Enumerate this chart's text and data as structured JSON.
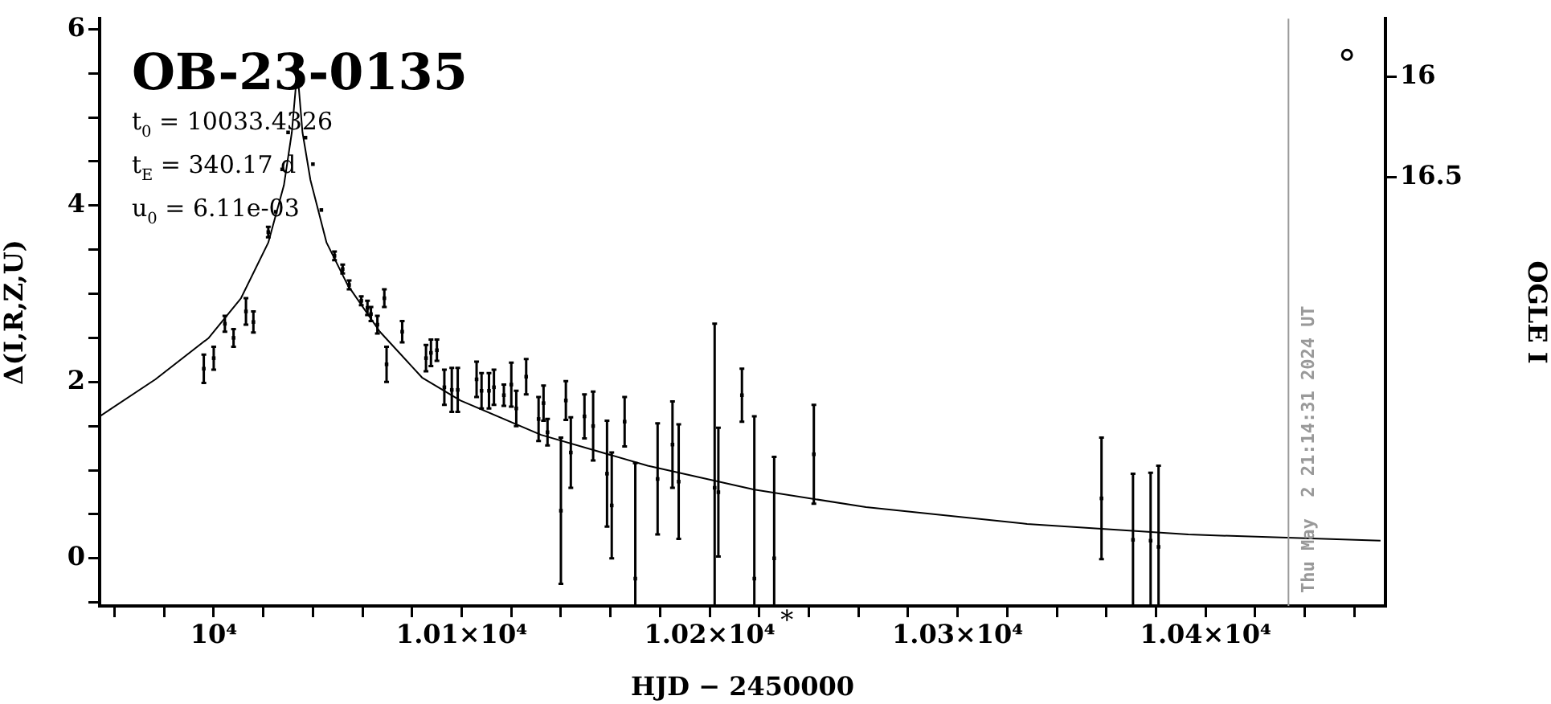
{
  "chart_data": {
    "type": "scatter",
    "title": "OB-23-0135",
    "xlabel": "HJD − 2450000",
    "ylabel": "Δ(I,R,Z,U)",
    "y2label": "OGLE I",
    "xlim": [
      9954,
      10472.5
    ],
    "ylim": [
      -0.54,
      6.12
    ],
    "y2lim": [
      18.63,
      15.71
    ],
    "xticks": [
      {
        "value": 9960,
        "label": null
      },
      {
        "value": 9980,
        "label": null
      },
      {
        "value": 10000,
        "label": "10⁴"
      },
      {
        "value": 10020,
        "label": null
      },
      {
        "value": 10040,
        "label": null
      },
      {
        "value": 10060,
        "label": null
      },
      {
        "value": 10080,
        "label": null
      },
      {
        "value": 10100,
        "label": "1.01×10⁴"
      },
      {
        "value": 10120,
        "label": null
      },
      {
        "value": 10140,
        "label": null
      },
      {
        "value": 10160,
        "label": null
      },
      {
        "value": 10180,
        "label": null
      },
      {
        "value": 10200,
        "label": "1.02×10⁴"
      },
      {
        "value": 10220,
        "label": null
      },
      {
        "value": 10240,
        "label": null
      },
      {
        "value": 10260,
        "label": null
      },
      {
        "value": 10280,
        "label": null
      },
      {
        "value": 10300,
        "label": "1.03×10⁴"
      },
      {
        "value": 10320,
        "label": null
      },
      {
        "value": 10340,
        "label": null
      },
      {
        "value": 10360,
        "label": null
      },
      {
        "value": 10380,
        "label": null
      },
      {
        "value": 10400,
        "label": "1.04×10⁴"
      },
      {
        "value": 10420,
        "label": null
      },
      {
        "value": 10440,
        "label": null
      },
      {
        "value": 10460,
        "label": null
      }
    ],
    "yticks": [
      {
        "value": -0.5,
        "label": null
      },
      0,
      {
        "value": 0.5,
        "label": null
      },
      {
        "value": 1,
        "label": null
      },
      {
        "value": 1.5,
        "label": null
      },
      2,
      {
        "value": 2.5,
        "label": null
      },
      {
        "value": 3,
        "label": null
      },
      {
        "value": 3.5,
        "label": null
      },
      4,
      {
        "value": 4.5,
        "label": null
      },
      {
        "value": 5,
        "label": null
      },
      {
        "value": 5.5,
        "label": null
      },
      6
    ],
    "y2ticks": [
      16,
      16.5
    ],
    "annotations": [
      "t$_{0}$ = 10033.4326",
      "t$_{E}$ = 340.17 d",
      "u$_{0}$ = 6.11e-03",
      "*",
      "Thu May  2 21:14:31 2024 UT"
    ],
    "ref_lines": [
      {
        "axis": "x",
        "value": 10433.39,
        "color": "#999999"
      }
    ],
    "series": [
      {
        "type": "scatter",
        "marker": "square",
        "color": "#000000",
        "x": [
          9996,
          10000,
          10004.5,
          10008,
          10013,
          10016,
          10022,
          10025,
          10027.6,
          10030,
          10033.6,
          10037,
          10040,
          10043.4,
          10048.7,
          10052,
          10054.6,
          10059.5,
          10062,
          10063.4,
          10066,
          10068.8,
          10069.7,
          10076,
          10085.6,
          10087.6,
          10090,
          10093,
          10096,
          10098.4,
          10106,
          10108,
          10111,
          10113,
          10117,
          10120,
          10122,
          10126,
          10131,
          10133,
          10134.6,
          10140,
          10142,
          10144,
          10149.5,
          10153,
          10158.6,
          10160.5,
          10165.7,
          10170,
          10179,
          10185,
          10187.5,
          10202,
          10203.5,
          10213,
          10218,
          10226,
          10242,
          10358,
          10370.7,
          10377.8,
          10381
        ],
        "values": [
          2.15,
          2.27,
          2.66,
          2.5,
          2.8,
          2.68,
          3.7,
          3.93,
          4.41,
          4.83,
          5.54,
          4.77,
          4.47,
          3.95,
          3.43,
          3.28,
          3.1,
          2.92,
          2.84,
          2.77,
          2.65,
          2.95,
          2.2,
          2.57,
          2.27,
          2.33,
          2.36,
          1.94,
          1.91,
          1.91,
          2.03,
          1.9,
          1.9,
          1.94,
          1.85,
          1.97,
          1.7,
          2.06,
          1.58,
          1.76,
          1.43,
          0.54,
          1.79,
          1.2,
          1.61,
          1.5,
          0.96,
          0.6,
          1.55,
          -0.23,
          0.9,
          1.29,
          0.87,
          0.8,
          0.75,
          1.85,
          -0.23,
          0,
          1.18,
          0.68,
          0.21,
          0.2,
          0.13
        ],
        "errors": [
          0.16,
          0.13,
          0.09,
          0.1,
          0.15,
          0.12,
          0.06,
          null,
          null,
          null,
          null,
          null,
          null,
          null,
          0.05,
          0.05,
          0.05,
          0.05,
          0.08,
          0.08,
          0.1,
          0.1,
          0.2,
          0.12,
          0.15,
          0.15,
          0.12,
          0.2,
          0.25,
          0.25,
          0.2,
          0.2,
          0.2,
          0.2,
          0.12,
          0.25,
          0.2,
          0.2,
          0.25,
          0.2,
          0.15,
          0.83,
          0.22,
          0.4,
          0.25,
          0.39,
          0.6,
          0.6,
          0.28,
          [
            -0.54,
            1.08
          ],
          0.63,
          0.49,
          0.65,
          [
            -0.54,
            2.66
          ],
          0.73,
          0.3,
          [
            -0.54,
            1.61
          ],
          [
            -0.54,
            1.15
          ],
          0.56,
          0.69,
          0.75,
          [
            -0.54,
            0.97
          ],
          [
            -0.54,
            1.05
          ]
        ]
      },
      {
        "type": "line",
        "color": "#000000",
        "x": [
          9954,
          9976.5,
          9998,
          10011,
          10022,
          10028.3,
          10031.5,
          10033.7,
          10035.8,
          10039,
          10045.5,
          10054,
          10067,
          10084,
          10099.5,
          10132,
          10175,
          10218,
          10263,
          10328,
          10393,
          10470.5
        ],
        "values": [
          1.61,
          2.03,
          2.5,
          2.95,
          3.58,
          4.23,
          4.83,
          5.54,
          4.83,
          4.29,
          3.58,
          3.1,
          2.57,
          2.05,
          1.79,
          1.4,
          1.05,
          0.78,
          0.58,
          0.39,
          0.27,
          0.2
        ]
      },
      {
        "type": "scatter",
        "marker": "circle",
        "color": "#000000",
        "x": [
          10457
        ],
        "values": [
          5.71
        ]
      }
    ]
  }
}
